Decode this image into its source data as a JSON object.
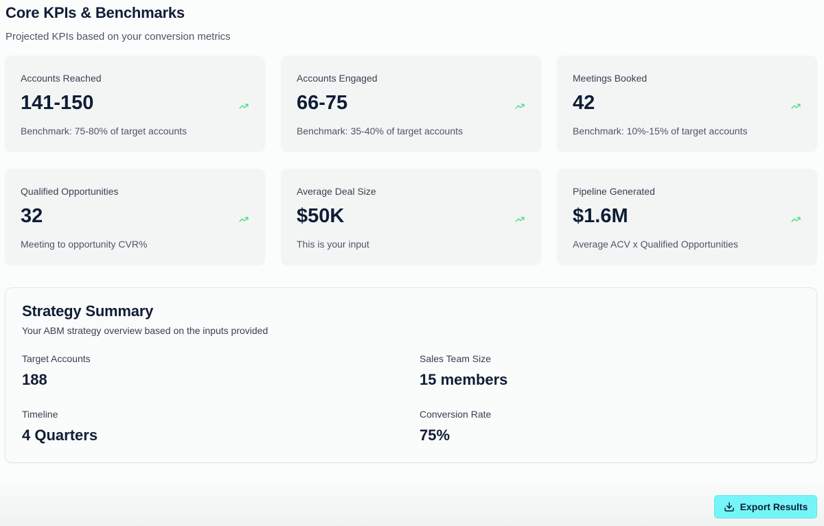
{
  "header": {
    "title": "Core KPIs & Benchmarks",
    "subtitle": "Projected KPIs based on your conversion metrics"
  },
  "colors": {
    "trend": "#4ade80",
    "button": "#76f5f9",
    "text": "#0f1d35"
  },
  "kpis": [
    {
      "label": "Accounts Reached",
      "value": "141-150",
      "note": "Benchmark: 75-80% of target accounts",
      "icon": "trending-up-icon"
    },
    {
      "label": "Accounts Engaged",
      "value": "66-75",
      "note": "Benchmark: 35-40% of target accounts",
      "icon": "trending-up-icon"
    },
    {
      "label": "Meetings Booked",
      "value": "42",
      "note": "Benchmark: 10%-15% of target accounts",
      "icon": "trending-up-icon"
    },
    {
      "label": "Qualified Opportunities",
      "value": "32",
      "note": "Meeting to opportunity CVR%",
      "icon": "trending-up-icon"
    },
    {
      "label": "Average Deal Size",
      "value": "$50K",
      "note": "This is your input",
      "icon": "trending-up-icon"
    },
    {
      "label": "Pipeline Generated",
      "value": "$1.6M",
      "note": "Average ACV x Qualified Opportunities",
      "icon": "trending-up-icon"
    }
  ],
  "summary": {
    "title": "Strategy Summary",
    "description": "Your ABM strategy overview based on the inputs provided",
    "items": [
      {
        "label": "Target Accounts",
        "value": "188"
      },
      {
        "label": "Sales Team Size",
        "value": "15 members"
      },
      {
        "label": "Timeline",
        "value": "4 Quarters"
      },
      {
        "label": "Conversion Rate",
        "value": "75%"
      }
    ]
  },
  "export_button": {
    "label": "Export Results",
    "icon": "download-icon"
  }
}
